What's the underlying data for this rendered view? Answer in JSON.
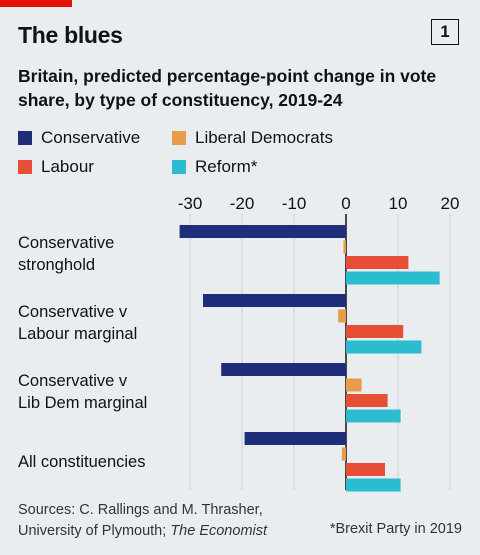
{
  "title": "The blues",
  "chart_number": "1",
  "subtitle": "Britain, predicted percentage-point change in vote share, by type of constituency, 2019-24",
  "source_line1": "Sources: C. Rallings and M. Thrasher,",
  "source_line2_prefix": "University of Plymouth; ",
  "source_line2_italic": "The Economist",
  "footnote": "*Brexit Party in 2019",
  "colors": {
    "brand_red": "#e3120b",
    "background": "#e9edf0",
    "grid": "#c9ced3",
    "zero_line": "#121212"
  },
  "chart_data": {
    "type": "bar",
    "orientation": "horizontal",
    "categories": [
      "Conservative\nstronghold",
      "Conservative v\nLabour marginal",
      "Conservative v\nLib Dem marginal",
      "All constituencies"
    ],
    "series": [
      {
        "name": "Conservative",
        "color": "#1f2e7a",
        "values": [
          -32,
          -27.5,
          -24,
          -19.5
        ]
      },
      {
        "name": "Liberal Democrats",
        "color": "#e89c4a",
        "values": [
          -0.5,
          -1.5,
          3,
          -0.8
        ]
      },
      {
        "name": "Labour",
        "color": "#e64e35",
        "values": [
          12,
          11,
          8,
          7.5
        ]
      },
      {
        "name": "Reform*",
        "color": "#2bbcd0",
        "values": [
          18,
          14.5,
          10.5,
          10.5
        ]
      }
    ],
    "xlim": [
      -33,
      21
    ],
    "xticks": [
      -30,
      -20,
      -10,
      0,
      10,
      20
    ],
    "grid": true,
    "legend_position": "top-left"
  }
}
